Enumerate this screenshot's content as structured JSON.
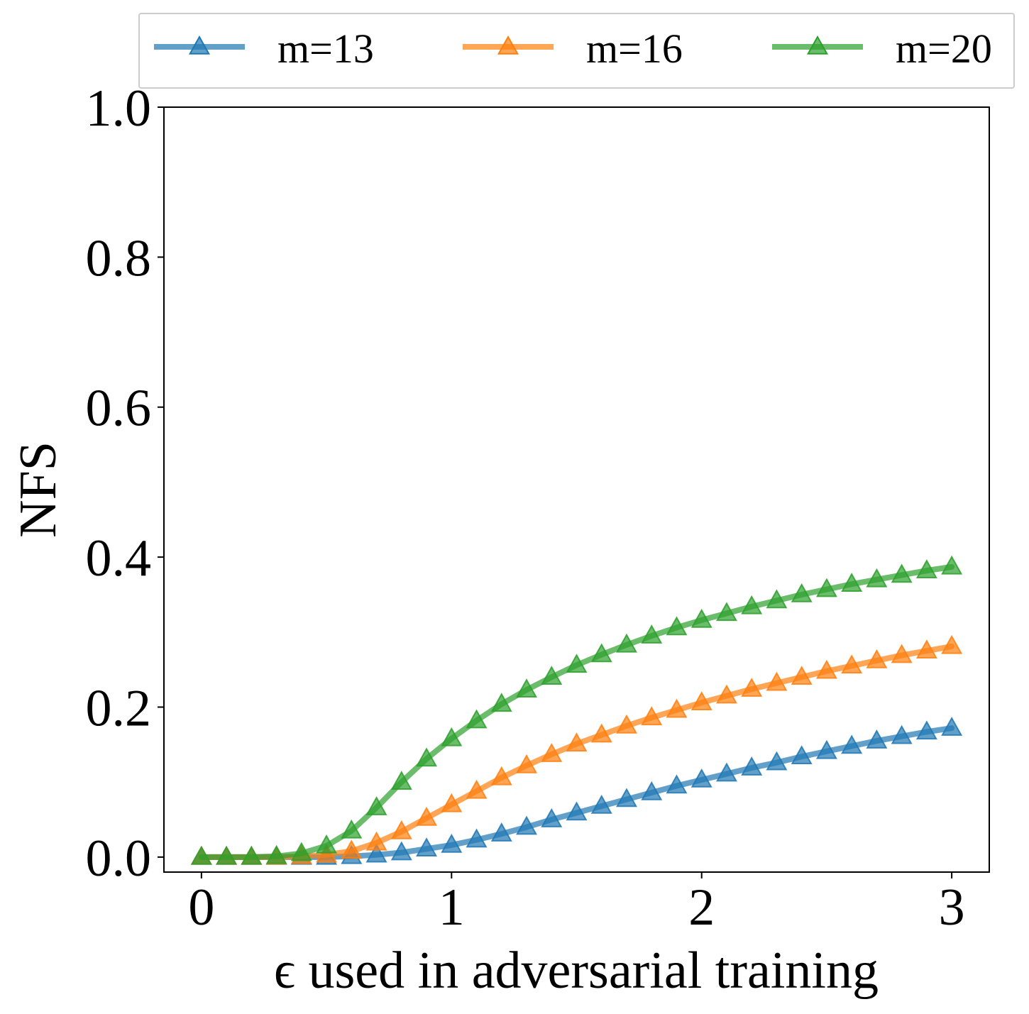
{
  "chart_data": {
    "type": "line",
    "title": "",
    "xlabel": "ϵ used in adversarial training",
    "ylabel": "NFS",
    "xlim": [
      -0.15,
      3.15
    ],
    "ylim": [
      -0.02,
      1.0
    ],
    "xticks": [
      0,
      1,
      2,
      3
    ],
    "xtick_labels": [
      "0",
      "1",
      "2",
      "3"
    ],
    "yticks": [
      0.0,
      0.2,
      0.4,
      0.6,
      0.8,
      1.0
    ],
    "ytick_labels": [
      "0.0",
      "0.2",
      "0.4",
      "0.6",
      "0.8",
      "1.0"
    ],
    "grid": false,
    "legend_position": "top, outside plot, 3 columns",
    "x": [
      0.0,
      0.1,
      0.2,
      0.3,
      0.4,
      0.5,
      0.6,
      0.7,
      0.8,
      0.9,
      1.0,
      1.1,
      1.2,
      1.3,
      1.4,
      1.5,
      1.6,
      1.7,
      1.8,
      1.9,
      2.0,
      2.1,
      2.2,
      2.3,
      2.4,
      2.5,
      2.6,
      2.7,
      2.8,
      2.9,
      3.0
    ],
    "series": [
      {
        "name": "m=13",
        "color": "#1f77b4",
        "marker": "triangle-up",
        "values": [
          0.0,
          0.0,
          0.0,
          0.0,
          0.0,
          0.0,
          0.001,
          0.003,
          0.006,
          0.011,
          0.016,
          0.023,
          0.031,
          0.04,
          0.05,
          0.059,
          0.068,
          0.077,
          0.086,
          0.095,
          0.103,
          0.111,
          0.119,
          0.126,
          0.134,
          0.141,
          0.148,
          0.155,
          0.161,
          0.167,
          0.172
        ]
      },
      {
        "name": "m=16",
        "color": "#ff7f0e",
        "marker": "triangle-up",
        "values": [
          0.0,
          0.0,
          0.0,
          0.0,
          0.001,
          0.003,
          0.008,
          0.019,
          0.034,
          0.052,
          0.07,
          0.088,
          0.106,
          0.122,
          0.137,
          0.151,
          0.163,
          0.175,
          0.186,
          0.196,
          0.206,
          0.215,
          0.224,
          0.232,
          0.24,
          0.248,
          0.255,
          0.262,
          0.269,
          0.275,
          0.281
        ]
      },
      {
        "name": "m=20",
        "color": "#2ca02c",
        "marker": "triangle-up",
        "values": [
          0.0,
          0.0,
          0.0,
          0.001,
          0.005,
          0.015,
          0.035,
          0.066,
          0.1,
          0.131,
          0.158,
          0.182,
          0.204,
          0.223,
          0.24,
          0.256,
          0.27,
          0.283,
          0.295,
          0.306,
          0.316,
          0.325,
          0.334,
          0.342,
          0.35,
          0.357,
          0.364,
          0.37,
          0.376,
          0.382,
          0.387
        ]
      }
    ]
  }
}
